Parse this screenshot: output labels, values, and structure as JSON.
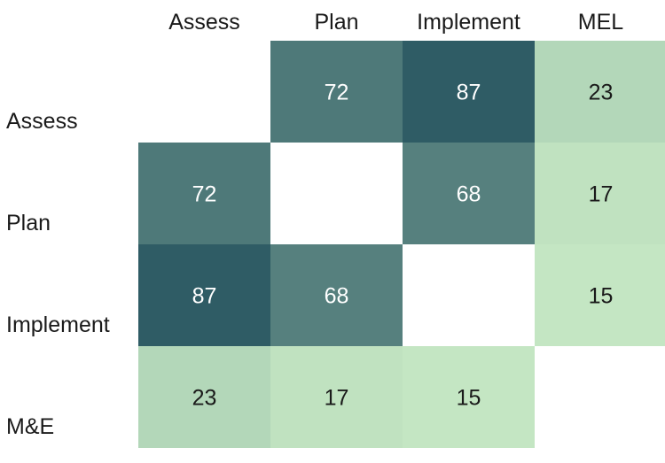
{
  "chart_data": {
    "type": "heatmap",
    "title": "",
    "xlabel": "",
    "ylabel": "",
    "columns": [
      "Assess",
      "Plan",
      "Implement",
      "MEL"
    ],
    "rows": [
      "Assess",
      "Plan",
      "Implement",
      "M&E"
    ],
    "values": [
      [
        null,
        72,
        87,
        23
      ],
      [
        72,
        null,
        68,
        17
      ],
      [
        87,
        68,
        null,
        15
      ],
      [
        23,
        17,
        15,
        null
      ]
    ],
    "color_scale": {
      "low": "#c4e6c3",
      "high": "#2f5c65",
      "min": 15,
      "max": 87
    },
    "text_colors": {
      "dark": "#1a1a1a",
      "light": "#ffffff"
    }
  }
}
